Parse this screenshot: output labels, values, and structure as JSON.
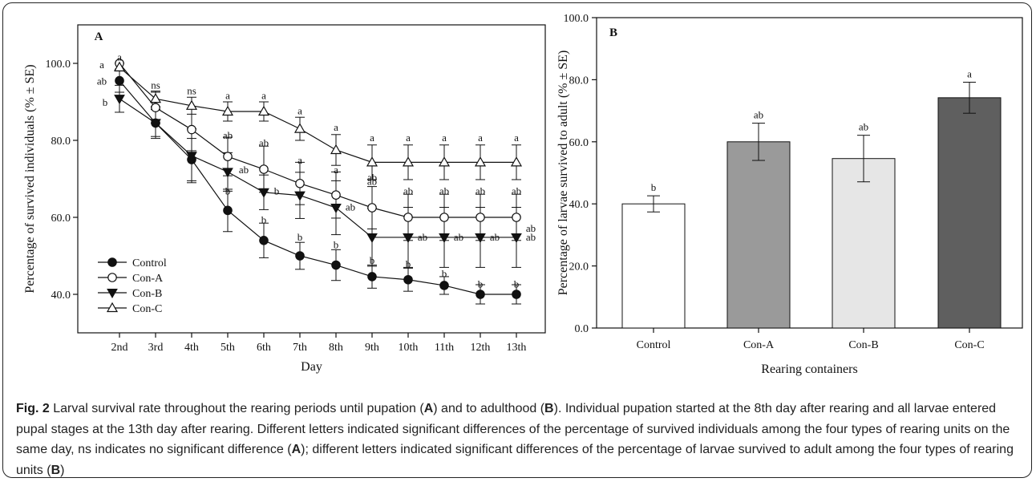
{
  "caption": {
    "fig_label": "Fig. 2",
    "segments": [
      {
        "t": " Larval survival rate throughout the rearing periods until pupation ("
      },
      {
        "t": "A",
        "b": true
      },
      {
        "t": ") and to adulthood ("
      },
      {
        "t": "B",
        "b": true
      },
      {
        "t": "). Individual pupation started at the 8th day after rearing and all larvae entered pupal stages at the 13th day after rearing. Different letters indicated significant differences of the percentage of survived individuals among the four types of rearing units on the same day, ns indicates no significant difference ("
      },
      {
        "t": "A",
        "b": true
      },
      {
        "t": "); different letters indicated significant differences of the percentage of larvae survived to adult among the four types of rearing units ("
      },
      {
        "t": "B",
        "b": true
      },
      {
        "t": ")"
      }
    ]
  },
  "chart_data": [
    {
      "type": "line",
      "panel_label": "A",
      "xlabel": "Day",
      "ylabel": "Percentage of survived individuals (% ± SE)",
      "categories": [
        "2nd",
        "3rd",
        "4th",
        "5th",
        "6th",
        "7th",
        "8th",
        "9th",
        "10th",
        "11th",
        "12th",
        "13th"
      ],
      "ylim": [
        30,
        110
      ],
      "yticks": [
        40,
        60,
        80,
        100
      ],
      "ytick_labels": [
        "40.0",
        "60.0",
        "80.0",
        "100.0"
      ],
      "legend_position": "bottom-left",
      "series": [
        {
          "name": "Control",
          "marker": "circle-filled",
          "values": [
            95.5,
            84.5,
            75.0,
            61.8,
            54.0,
            50.0,
            47.6,
            44.6,
            43.8,
            42.3,
            40.0,
            40.0
          ],
          "errors": [
            3.0,
            3.5,
            5.5,
            5.5,
            4.5,
            3.5,
            4.0,
            3.0,
            3.0,
            2.3,
            2.5,
            2.5
          ]
        },
        {
          "name": "Con-A",
          "marker": "circle-open",
          "values": [
            100.0,
            88.5,
            82.8,
            75.8,
            72.5,
            68.8,
            65.8,
            62.5,
            60.0,
            60.0,
            60.0,
            60.0
          ],
          "errors": [
            0.0,
            4.0,
            5.5,
            5.0,
            6.0,
            5.5,
            6.0,
            5.5,
            6.0,
            6.0,
            6.0,
            6.0
          ],
          "annotation_offset": 11
        },
        {
          "name": "Con-B",
          "marker": "triangle-down-filled",
          "values": [
            90.8,
            84.5,
            76.0,
            71.8,
            66.5,
            65.7,
            62.5,
            54.8,
            54.8,
            54.8,
            54.8,
            54.8
          ],
          "errors": [
            3.5,
            4.0,
            7.0,
            5.0,
            4.5,
            6.0,
            7.0,
            7.5,
            7.8,
            7.8,
            7.8,
            7.8
          ],
          "annotation_offset": 11
        },
        {
          "name": "Con-C",
          "marker": "triangle-up-open",
          "values": [
            99.0,
            90.8,
            89.0,
            87.5,
            87.5,
            83.0,
            77.5,
            74.3,
            74.3,
            74.3,
            74.3,
            74.3
          ],
          "errors": [
            1.0,
            2.0,
            2.2,
            2.5,
            2.5,
            3.0,
            4.0,
            4.5,
            4.5,
            4.5,
            4.5,
            4.5
          ]
        }
      ],
      "annotations": [
        {
          "x": 0,
          "y": 101.8,
          "text": "a"
        },
        {
          "x": 0,
          "y": 99.8,
          "text": "a",
          "dx": -22
        },
        {
          "x": 0,
          "y": 95.5,
          "text": "ab",
          "dx": -22
        },
        {
          "x": 0,
          "y": 90.0,
          "text": "b",
          "dx": -18
        },
        {
          "x": 1,
          "y": 94.5,
          "text": "ns"
        },
        {
          "x": 2,
          "y": 93.0,
          "text": "ns"
        },
        {
          "x": 3,
          "y": 91.8,
          "text": "a"
        },
        {
          "x": 4,
          "y": 91.8,
          "text": "a"
        },
        {
          "x": 5,
          "y": 87.8,
          "text": "a"
        },
        {
          "x": 6,
          "y": 83.5,
          "text": "a"
        },
        {
          "x": 7,
          "y": 80.8,
          "text": "a"
        },
        {
          "x": 8,
          "y": 80.8,
          "text": "a"
        },
        {
          "x": 9,
          "y": 80.8,
          "text": "a"
        },
        {
          "x": 10,
          "y": 80.8,
          "text": "a"
        },
        {
          "x": 11,
          "y": 80.8,
          "text": "a"
        },
        {
          "x": 3,
          "y": 81.5,
          "text": "ab"
        },
        {
          "x": 4,
          "y": 79.5,
          "text": "ab"
        },
        {
          "x": 5,
          "y": 75.0,
          "text": "a"
        },
        {
          "x": 6,
          "y": 72.5,
          "text": "a"
        },
        {
          "x": 7,
          "y": 69.5,
          "text": "ab"
        },
        {
          "x": 8,
          "y": 67.0,
          "text": "ab"
        },
        {
          "x": 9,
          "y": 67.0,
          "text": "ab"
        },
        {
          "x": 10,
          "y": 67.0,
          "text": "ab"
        },
        {
          "x": 11,
          "y": 67.0,
          "text": "ab"
        },
        {
          "x": 3,
          "y": 72.5,
          "text": "ab",
          "dx": 20
        },
        {
          "x": 4,
          "y": 67.0,
          "text": "b",
          "dx": 16
        },
        {
          "x": 5,
          "y": 66.5,
          "text": "a"
        },
        {
          "x": 6,
          "y": 62.8,
          "text": "ab",
          "dx": 18
        },
        {
          "x": 7,
          "y": 70.5,
          "text": "ab"
        },
        {
          "x": 8,
          "y": 55.0,
          "text": "ab",
          "dx": 18
        },
        {
          "x": 9,
          "y": 55.0,
          "text": "ab",
          "dx": 18
        },
        {
          "x": 10,
          "y": 55.0,
          "text": "ab",
          "dx": 18
        },
        {
          "x": 11,
          "y": 55.0,
          "text": "ab",
          "dx": 18
        },
        {
          "x": 3,
          "y": 67.0,
          "text": "b"
        },
        {
          "x": 4,
          "y": 59.5,
          "text": "b"
        },
        {
          "x": 5,
          "y": 55.0,
          "text": "b"
        },
        {
          "x": 6,
          "y": 53.0,
          "text": "b"
        },
        {
          "x": 7,
          "y": 49.0,
          "text": "b"
        },
        {
          "x": 8,
          "y": 48.0,
          "text": "b"
        },
        {
          "x": 9,
          "y": 45.5,
          "text": "b"
        },
        {
          "x": 10,
          "y": 42.8,
          "text": "b"
        },
        {
          "x": 11,
          "y": 42.8,
          "text": "b"
        }
      ]
    },
    {
      "type": "bar",
      "panel_label": "B",
      "xlabel": "Rearing containers",
      "ylabel": "Percentage of larvae survived to adult (% ± SE)",
      "categories": [
        "Control",
        "Con-A",
        "Con-B",
        "Con-C"
      ],
      "values": [
        40.0,
        60.0,
        54.6,
        74.2
      ],
      "errors": [
        2.6,
        6.0,
        7.5,
        5.0
      ],
      "letters": [
        "b",
        "ab",
        "ab",
        "a"
      ],
      "bar_colors": [
        "#ffffff",
        "#9a9a9a",
        "#e6e6e6",
        "#5f5f5f"
      ],
      "ylim": [
        0,
        100
      ],
      "yticks": [
        0,
        20,
        40,
        60,
        80,
        100
      ],
      "ytick_labels": [
        "0.0",
        "20.0",
        "40.0",
        "60.0",
        "80.0",
        "100.0"
      ]
    }
  ]
}
